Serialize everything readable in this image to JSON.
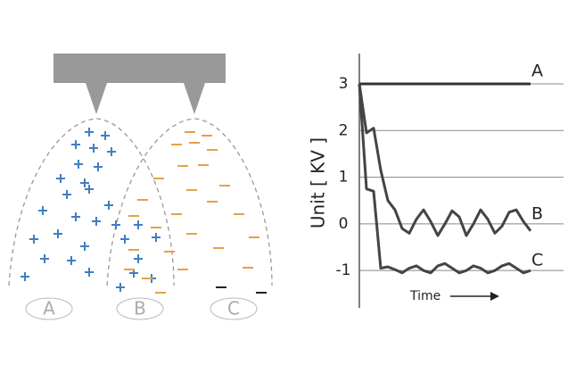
{
  "diagram": {
    "labels": [
      "A",
      "B",
      "C"
    ]
  },
  "chart_data": {
    "type": "line",
    "y_label": "Unit [ KV ]",
    "x_label": "Time",
    "categories": [
      null,
      null,
      null,
      null,
      null,
      null,
      null,
      null,
      null,
      null,
      null,
      null,
      null,
      null,
      null,
      null,
      null,
      null,
      null,
      null,
      null,
      null,
      null,
      null,
      null
    ],
    "series": [
      {
        "name": "A",
        "color": "#333333",
        "values": [
          3,
          3,
          3,
          3,
          3,
          3,
          3,
          3,
          3,
          3,
          3,
          3,
          3,
          3,
          3,
          3,
          3,
          3,
          3,
          3,
          3,
          3,
          3,
          3,
          3
        ]
      },
      {
        "name": "B",
        "color": "#444444",
        "values": [
          3,
          1.95,
          2.05,
          1.15,
          0.5,
          0.3,
          -0.1,
          -0.2,
          0.1,
          0.3,
          0.05,
          -0.25,
          0,
          0.28,
          0.15,
          -0.25,
          0,
          0.3,
          0.1,
          -0.2,
          -0.05,
          0.25,
          0.3,
          0.05,
          -0.15
        ]
      },
      {
        "name": "C",
        "color": "#444444",
        "values": [
          3,
          0.75,
          0.7,
          -0.95,
          -0.92,
          -0.98,
          -1.05,
          -0.95,
          -0.9,
          -1,
          -1.05,
          -0.9,
          -0.85,
          -0.95,
          -1.05,
          -1,
          -0.9,
          -0.95,
          -1.05,
          -1,
          -0.9,
          -0.85,
          -0.95,
          -1.05,
          -1
        ]
      }
    ],
    "ylim": [
      -1.8,
      3.65
    ],
    "yticks": [
      3,
      2,
      1,
      0,
      -1
    ],
    "grid": true
  }
}
